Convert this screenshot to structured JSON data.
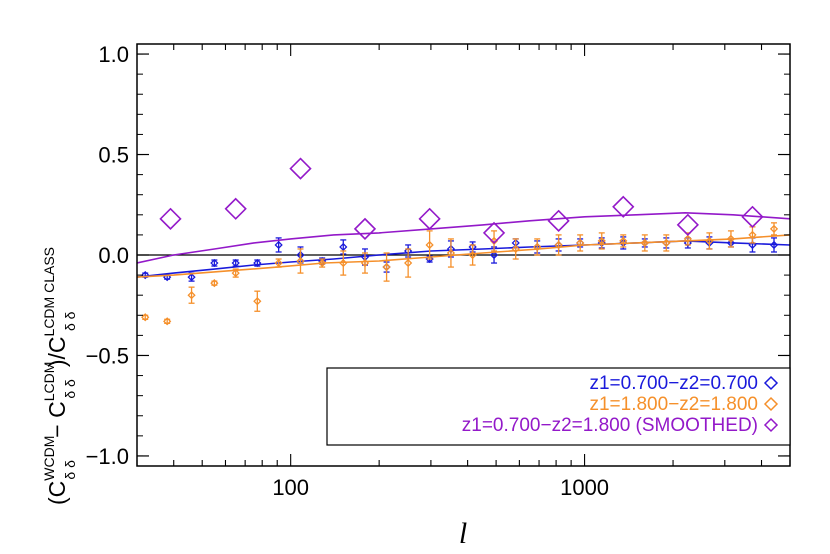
{
  "chart_data": {
    "type": "scatter",
    "title": "",
    "xlabel": "l",
    "ylabel": {
      "open": "(C",
      "sup1": "WCDM",
      "sub1": "δ δ",
      "minus": " − C",
      "sup2": "LCDM",
      "sub2": "δ δ",
      "close": ")/C",
      "sup3": "LCDM CLASS",
      "sub3": "δ δ"
    },
    "xscale": "log",
    "xlim": [
      30,
      5000
    ],
    "ylim": [
      -1.05,
      1.05
    ],
    "x_ticks": [
      {
        "value": 100,
        "label": "100"
      },
      {
        "value": 1000,
        "label": "1000"
      }
    ],
    "y_ticks": [
      {
        "value": -1.0,
        "label": "−1.0"
      },
      {
        "value": -0.5,
        "label": "−0.5"
      },
      {
        "value": 0.0,
        "label": "0.0"
      },
      {
        "value": 0.5,
        "label": "0.5"
      },
      {
        "value": 1.0,
        "label": "1.0"
      }
    ],
    "zero_line": 0,
    "legend_position": "bottom-right",
    "series": [
      {
        "name": "z1=0.700−z2=0.700",
        "color": "#1a1adb",
        "marker": "diamond-small",
        "points": [
          {
            "x": 32,
            "y": -0.1,
            "err": 0.01
          },
          {
            "x": 38,
            "y": -0.11,
            "err": 0.01
          },
          {
            "x": 46,
            "y": -0.11,
            "err": 0.02
          },
          {
            "x": 55,
            "y": -0.04,
            "err": 0.015
          },
          {
            "x": 65,
            "y": -0.04,
            "err": 0.015
          },
          {
            "x": 77,
            "y": -0.04,
            "err": 0.015
          },
          {
            "x": 91,
            "y": 0.05,
            "err": 0.035
          },
          {
            "x": 108,
            "y": 0.0,
            "err": 0.04
          },
          {
            "x": 128,
            "y": -0.03,
            "err": 0.015
          },
          {
            "x": 151,
            "y": 0.04,
            "err": 0.035
          },
          {
            "x": 179,
            "y": -0.01,
            "err": 0.04
          },
          {
            "x": 212,
            "y": -0.06,
            "err": 0.025
          },
          {
            "x": 251,
            "y": 0.02,
            "err": 0.03
          },
          {
            "x": 297,
            "y": -0.02,
            "err": 0.015
          },
          {
            "x": 351,
            "y": 0.03,
            "err": 0.04
          },
          {
            "x": 416,
            "y": 0.04,
            "err": 0.025
          },
          {
            "x": 492,
            "y": 0.0,
            "err": 0.04
          },
          {
            "x": 583,
            "y": 0.06,
            "err": 0.02
          },
          {
            "x": 690,
            "y": 0.04,
            "err": 0.03
          },
          {
            "x": 816,
            "y": 0.05,
            "err": 0.03
          },
          {
            "x": 966,
            "y": 0.06,
            "err": 0.02
          },
          {
            "x": 1144,
            "y": 0.06,
            "err": 0.025
          },
          {
            "x": 1354,
            "y": 0.06,
            "err": 0.03
          },
          {
            "x": 1603,
            "y": 0.06,
            "err": 0.02
          },
          {
            "x": 1897,
            "y": 0.06,
            "err": 0.025
          },
          {
            "x": 2246,
            "y": 0.06,
            "err": 0.025
          },
          {
            "x": 2659,
            "y": 0.06,
            "err": 0.03
          },
          {
            "x": 3148,
            "y": 0.06,
            "err": 0.02
          },
          {
            "x": 3726,
            "y": 0.05,
            "err": 0.035
          },
          {
            "x": 4411,
            "y": 0.05,
            "err": 0.035
          }
        ],
        "curve": [
          {
            "x": 30,
            "y": -0.11
          },
          {
            "x": 40,
            "y": -0.09
          },
          {
            "x": 55,
            "y": -0.07
          },
          {
            "x": 75,
            "y": -0.05
          },
          {
            "x": 100,
            "y": -0.035
          },
          {
            "x": 140,
            "y": -0.02
          },
          {
            "x": 200,
            "y": 0.0
          },
          {
            "x": 300,
            "y": 0.02
          },
          {
            "x": 450,
            "y": 0.03
          },
          {
            "x": 650,
            "y": 0.04
          },
          {
            "x": 1000,
            "y": 0.05
          },
          {
            "x": 1500,
            "y": 0.06
          },
          {
            "x": 2200,
            "y": 0.07
          },
          {
            "x": 3200,
            "y": 0.06
          },
          {
            "x": 5000,
            "y": 0.05
          }
        ]
      },
      {
        "name": "z1=1.800−z2=1.800",
        "color": "#f5902b",
        "marker": "diamond-small",
        "points": [
          {
            "x": 32,
            "y": -0.31,
            "err": 0.01
          },
          {
            "x": 38,
            "y": -0.33,
            "err": 0.01
          },
          {
            "x": 46,
            "y": -0.2,
            "err": 0.04
          },
          {
            "x": 55,
            "y": -0.14,
            "err": 0.01
          },
          {
            "x": 65,
            "y": -0.09,
            "err": 0.02
          },
          {
            "x": 77,
            "y": -0.23,
            "err": 0.05
          },
          {
            "x": 91,
            "y": -0.04,
            "err": 0.02
          },
          {
            "x": 108,
            "y": -0.03,
            "err": 0.06
          },
          {
            "x": 128,
            "y": -0.04,
            "err": 0.02
          },
          {
            "x": 151,
            "y": -0.04,
            "err": 0.06
          },
          {
            "x": 179,
            "y": -0.04,
            "err": 0.05
          },
          {
            "x": 212,
            "y": -0.06,
            "err": 0.07
          },
          {
            "x": 251,
            "y": -0.04,
            "err": 0.07
          },
          {
            "x": 297,
            "y": 0.05,
            "err": 0.07
          },
          {
            "x": 351,
            "y": 0.01,
            "err": 0.07
          },
          {
            "x": 416,
            "y": 0.0,
            "err": 0.05
          },
          {
            "x": 492,
            "y": 0.07,
            "err": 0.05
          },
          {
            "x": 583,
            "y": 0.03,
            "err": 0.05
          },
          {
            "x": 690,
            "y": 0.04,
            "err": 0.04
          },
          {
            "x": 816,
            "y": 0.05,
            "err": 0.05
          },
          {
            "x": 966,
            "y": 0.06,
            "err": 0.04
          },
          {
            "x": 1144,
            "y": 0.07,
            "err": 0.04
          },
          {
            "x": 1354,
            "y": 0.07,
            "err": 0.03
          },
          {
            "x": 1603,
            "y": 0.06,
            "err": 0.04
          },
          {
            "x": 1897,
            "y": 0.06,
            "err": 0.04
          },
          {
            "x": 2246,
            "y": 0.08,
            "err": 0.03
          },
          {
            "x": 2659,
            "y": 0.07,
            "err": 0.04
          },
          {
            "x": 3148,
            "y": 0.08,
            "err": 0.04
          },
          {
            "x": 3726,
            "y": 0.1,
            "err": 0.04
          },
          {
            "x": 4411,
            "y": 0.13,
            "err": 0.03
          }
        ],
        "curve": [
          {
            "x": 30,
            "y": -0.11
          },
          {
            "x": 40,
            "y": -0.1
          },
          {
            "x": 60,
            "y": -0.08
          },
          {
            "x": 90,
            "y": -0.06
          },
          {
            "x": 130,
            "y": -0.04
          },
          {
            "x": 200,
            "y": -0.03
          },
          {
            "x": 300,
            "y": -0.01
          },
          {
            "x": 450,
            "y": 0.01
          },
          {
            "x": 700,
            "y": 0.03
          },
          {
            "x": 1000,
            "y": 0.05
          },
          {
            "x": 1500,
            "y": 0.06
          },
          {
            "x": 2200,
            "y": 0.07
          },
          {
            "x": 3200,
            "y": 0.08
          },
          {
            "x": 5000,
            "y": 0.1
          }
        ]
      },
      {
        "name": "z1=0.700−z2=1.800 (SMOOTHED)",
        "color": "#9319c9",
        "marker": "diamond-large",
        "points": [
          {
            "x": 39,
            "y": 0.18
          },
          {
            "x": 65,
            "y": 0.23
          },
          {
            "x": 108,
            "y": 0.43
          },
          {
            "x": 179,
            "y": 0.13
          },
          {
            "x": 297,
            "y": 0.18
          },
          {
            "x": 492,
            "y": 0.11
          },
          {
            "x": 816,
            "y": 0.17
          },
          {
            "x": 1354,
            "y": 0.24
          },
          {
            "x": 2246,
            "y": 0.15
          },
          {
            "x": 3726,
            "y": 0.19
          }
        ],
        "curve": [
          {
            "x": 30,
            "y": -0.04
          },
          {
            "x": 40,
            "y": 0.0
          },
          {
            "x": 55,
            "y": 0.03
          },
          {
            "x": 75,
            "y": 0.06
          },
          {
            "x": 100,
            "y": 0.08
          },
          {
            "x": 140,
            "y": 0.1
          },
          {
            "x": 200,
            "y": 0.11
          },
          {
            "x": 300,
            "y": 0.13
          },
          {
            "x": 450,
            "y": 0.15
          },
          {
            "x": 650,
            "y": 0.17
          },
          {
            "x": 1000,
            "y": 0.19
          },
          {
            "x": 1500,
            "y": 0.2
          },
          {
            "x": 2200,
            "y": 0.21
          },
          {
            "x": 3200,
            "y": 0.2
          },
          {
            "x": 5000,
            "y": 0.18
          }
        ]
      }
    ]
  }
}
